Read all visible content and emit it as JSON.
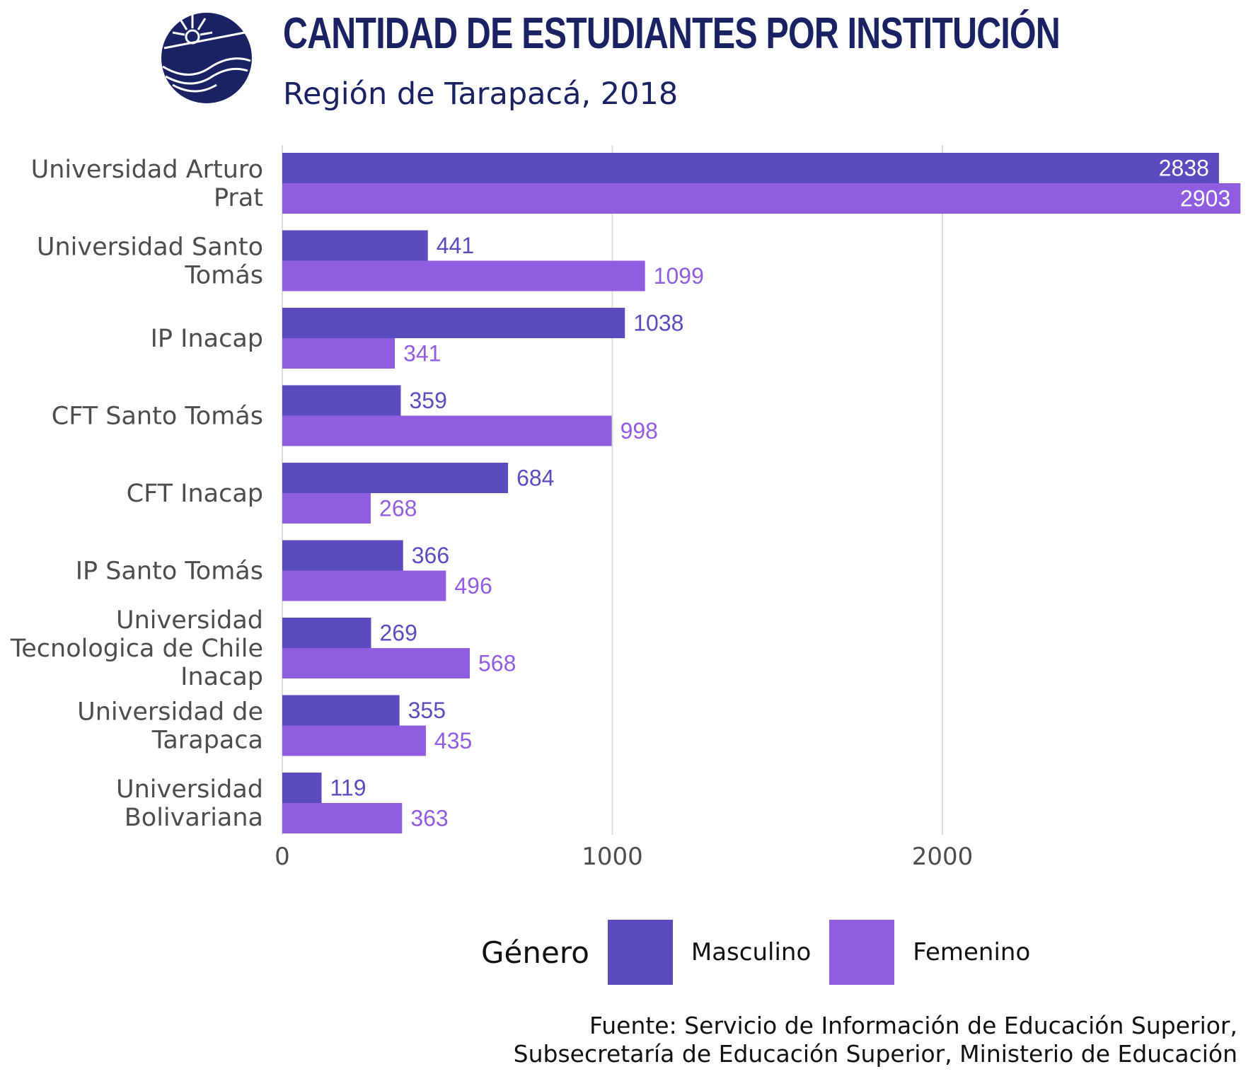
{
  "header": {
    "title": "CANTIDAD DE ESTUDIANTES POR INSTITUCIÓN",
    "subtitle": "Región de Tarapacá, 2018"
  },
  "legend": {
    "title": "Género",
    "items": [
      {
        "label": "Masculino",
        "color": "#5a4bbf"
      },
      {
        "label": "Femenino",
        "color": "#905ce0"
      }
    ]
  },
  "caption": {
    "line1": "Fuente: Servicio de Información de Educación Superior,",
    "line2": "Subsecretaría de Educación Superior, Ministerio de Educación"
  },
  "colors": {
    "title": "#1a2263",
    "masculino": "#5a4bbf",
    "femenino": "#905ce0",
    "grid": "#dcdcdc",
    "axis_text": "#4d4d4d"
  },
  "chart_data": {
    "type": "bar",
    "orientation": "horizontal",
    "categories": [
      [
        "Universidad Arturo",
        "Prat"
      ],
      [
        "Universidad Santo",
        "Tomás"
      ],
      [
        "IP Inacap"
      ],
      [
        "CFT Santo Tomás"
      ],
      [
        "CFT Inacap"
      ],
      [
        "IP Santo Tomás"
      ],
      [
        "Universidad",
        "Tecnologica de Chile",
        "Inacap"
      ],
      [
        "Universidad de",
        "Tarapaca"
      ],
      [
        "Universidad",
        "Bolivariana"
      ]
    ],
    "series": [
      {
        "name": "Masculino",
        "values": [
          2838,
          441,
          1038,
          359,
          684,
          366,
          269,
          355,
          119
        ]
      },
      {
        "name": "Femenino",
        "values": [
          2903,
          1099,
          341,
          998,
          268,
          496,
          568,
          435,
          363
        ]
      }
    ],
    "xticks": [
      0,
      1000,
      2000
    ],
    "xlim": [
      0,
      2903
    ],
    "grid": "vertical-major",
    "legend_position": "bottom"
  }
}
